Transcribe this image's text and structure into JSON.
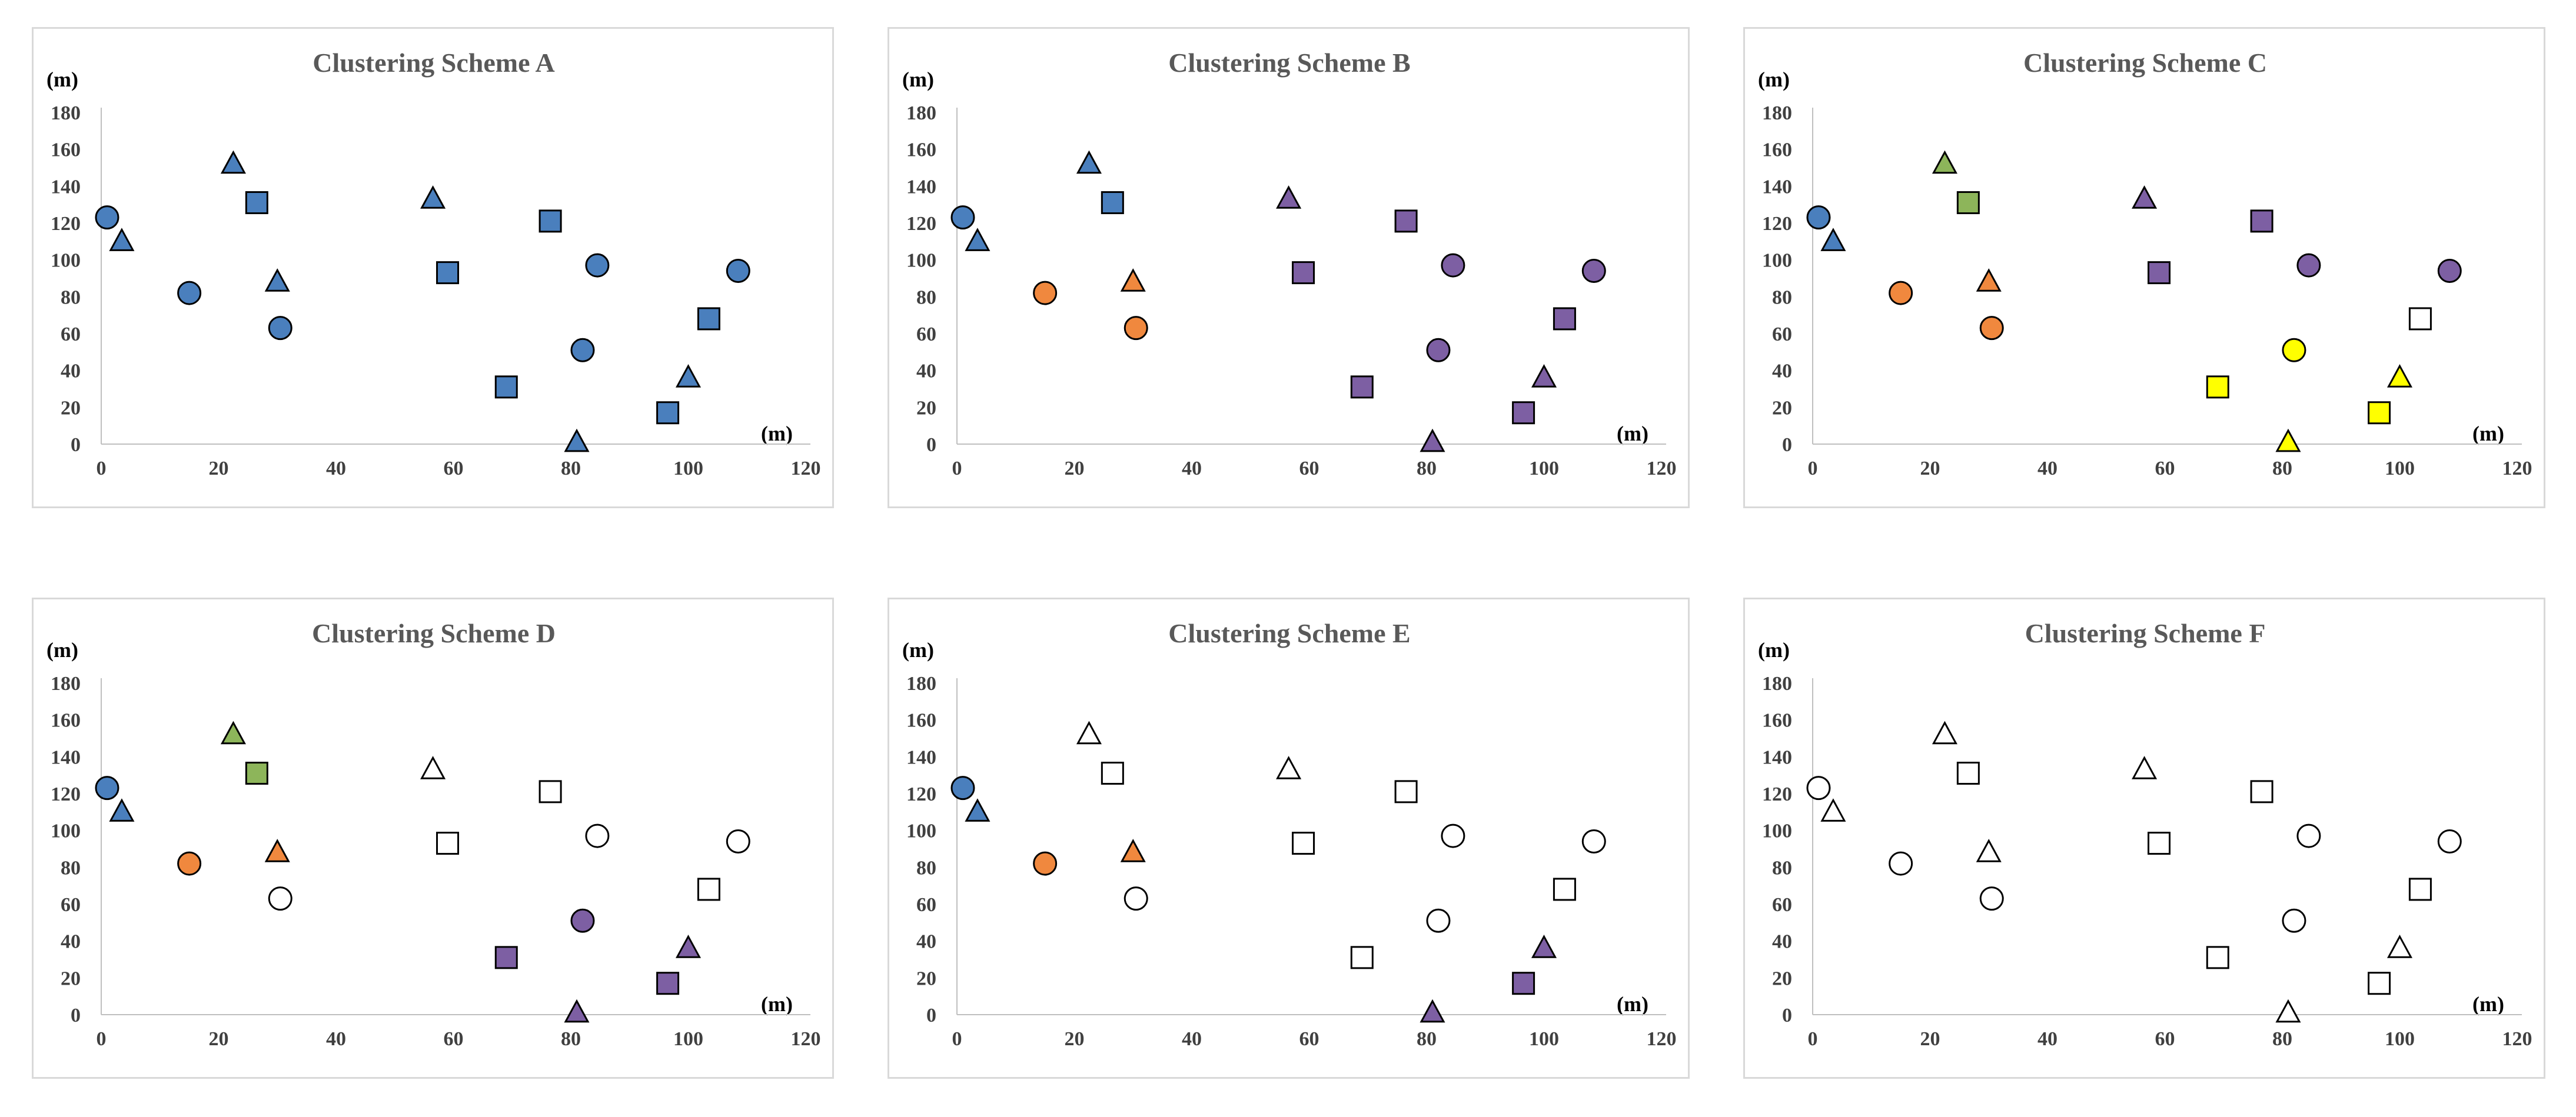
{
  "chart_data": {
    "type": "scatter",
    "shared": {
      "x_unit_label": "(m)",
      "y_unit_label": "(m)",
      "xlim": [
        0,
        120
      ],
      "ylim": [
        0,
        180
      ],
      "x_ticks": [
        "0",
        "20",
        "40",
        "60",
        "80",
        "100",
        "120"
      ],
      "y_ticks": [
        "0",
        "20",
        "40",
        "60",
        "80",
        "100",
        "120",
        "140",
        "160",
        "180"
      ],
      "grid": false,
      "points": [
        {
          "shape": "circle",
          "x": 1,
          "y": 123
        },
        {
          "shape": "triangle",
          "x": 3.5,
          "y": 110
        },
        {
          "shape": "circle",
          "x": 15,
          "y": 82
        },
        {
          "shape": "triangle",
          "x": 22.5,
          "y": 152
        },
        {
          "shape": "square",
          "x": 26.5,
          "y": 131
        },
        {
          "shape": "triangle",
          "x": 30,
          "y": 88
        },
        {
          "shape": "circle",
          "x": 30.5,
          "y": 63
        },
        {
          "shape": "triangle",
          "x": 56.5,
          "y": 133
        },
        {
          "shape": "square",
          "x": 59,
          "y": 93
        },
        {
          "shape": "square",
          "x": 69,
          "y": 31
        },
        {
          "shape": "square",
          "x": 76.5,
          "y": 121
        },
        {
          "shape": "triangle",
          "x": 81,
          "y": 1
        },
        {
          "shape": "circle",
          "x": 82,
          "y": 51
        },
        {
          "shape": "circle",
          "x": 84.5,
          "y": 97
        },
        {
          "shape": "square",
          "x": 96.5,
          "y": 17
        },
        {
          "shape": "triangle",
          "x": 100,
          "y": 36
        },
        {
          "shape": "square",
          "x": 103.5,
          "y": 68
        },
        {
          "shape": "circle",
          "x": 108.5,
          "y": 94
        }
      ]
    },
    "palette": {
      "blue": "#4a7fbd",
      "orange": "#f0883e",
      "green": "#8db55a",
      "purple": "#7d5fa3",
      "yellow": "#ffff00",
      "white": "#ffffff",
      "outline": "#000000"
    },
    "panels": [
      {
        "title": "Clustering Scheme A",
        "colors": [
          "blue",
          "blue",
          "blue",
          "blue",
          "blue",
          "blue",
          "blue",
          "blue",
          "blue",
          "blue",
          "blue",
          "blue",
          "blue",
          "blue",
          "blue",
          "blue",
          "blue",
          "blue"
        ]
      },
      {
        "title": "Clustering Scheme B",
        "colors": [
          "blue",
          "blue",
          "orange",
          "blue",
          "blue",
          "orange",
          "orange",
          "purple",
          "purple",
          "purple",
          "purple",
          "purple",
          "purple",
          "purple",
          "purple",
          "purple",
          "purple",
          "purple"
        ]
      },
      {
        "title": "Clustering Scheme C",
        "colors": [
          "blue",
          "blue",
          "orange",
          "green",
          "green",
          "orange",
          "orange",
          "purple",
          "purple",
          "yellow",
          "purple",
          "yellow",
          "yellow",
          "purple",
          "yellow",
          "yellow",
          "white",
          "purple"
        ]
      },
      {
        "title": "Clustering Scheme D",
        "colors": [
          "blue",
          "blue",
          "orange",
          "green",
          "green",
          "orange",
          "white",
          "white",
          "white",
          "purple",
          "white",
          "purple",
          "purple",
          "white",
          "purple",
          "purple",
          "white",
          "white"
        ]
      },
      {
        "title": "Clustering Scheme E",
        "colors": [
          "blue",
          "blue",
          "orange",
          "white",
          "white",
          "orange",
          "white",
          "white",
          "white",
          "white",
          "white",
          "purple",
          "white",
          "white",
          "purple",
          "purple",
          "white",
          "white"
        ]
      },
      {
        "title": "Clustering Scheme F",
        "colors": [
          "white",
          "white",
          "white",
          "white",
          "white",
          "white",
          "white",
          "white",
          "white",
          "white",
          "white",
          "white",
          "white",
          "white",
          "white",
          "white",
          "white",
          "white"
        ]
      }
    ]
  }
}
